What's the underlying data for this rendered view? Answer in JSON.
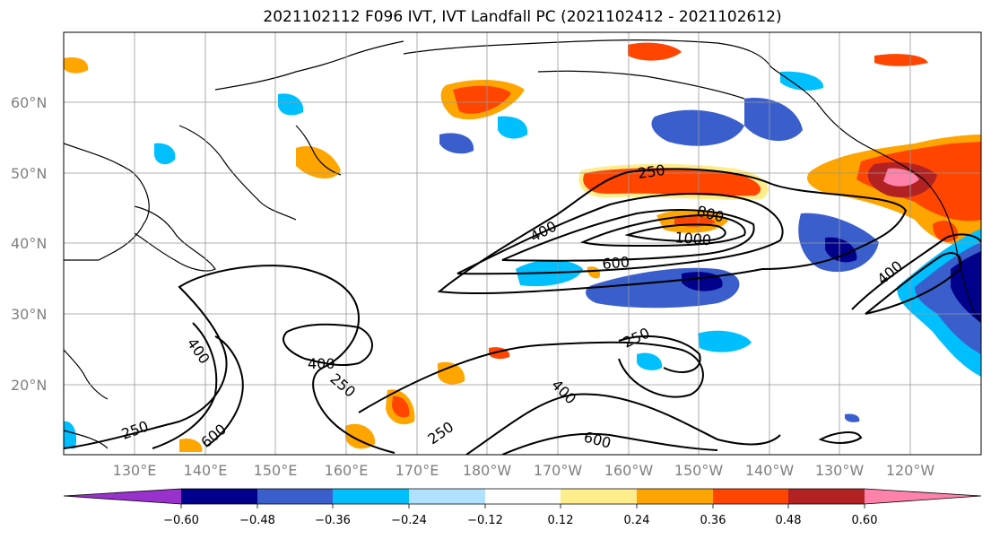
{
  "title": "2021102112 F096 IVT, IVT Landfall PC (2021102412 - 2021102612)",
  "lat_labels": [
    "60°N",
    "50°N",
    "40°N",
    "30°N",
    "20°N"
  ],
  "lon_labels": [
    "130°E",
    "140°E",
    "150°E",
    "160°E",
    "170°E",
    "180°W",
    "170°W",
    "160°W",
    "150°W",
    "140°W",
    "130°W",
    "120°W"
  ],
  "colorbar": {
    "colors": [
      "#9932cc",
      "#00008b",
      "#3a5fcd",
      "#00bfff",
      "#b0e2ff",
      "#ffffff",
      "#ffec8b",
      "#ffa500",
      "#ff4500",
      "#b22222",
      "#ff82ab"
    ],
    "tick_labels": [
      "−0.60",
      "−0.48",
      "−0.36",
      "−0.24",
      "−0.12",
      "0.12",
      "0.24",
      "0.36",
      "0.48",
      "0.60"
    ]
  },
  "contour_labels": [
    "250",
    "400",
    "800",
    "1000",
    "600",
    "400",
    "400",
    "250",
    "250",
    "600",
    "400",
    "250",
    "400",
    "250",
    "600"
  ]
}
